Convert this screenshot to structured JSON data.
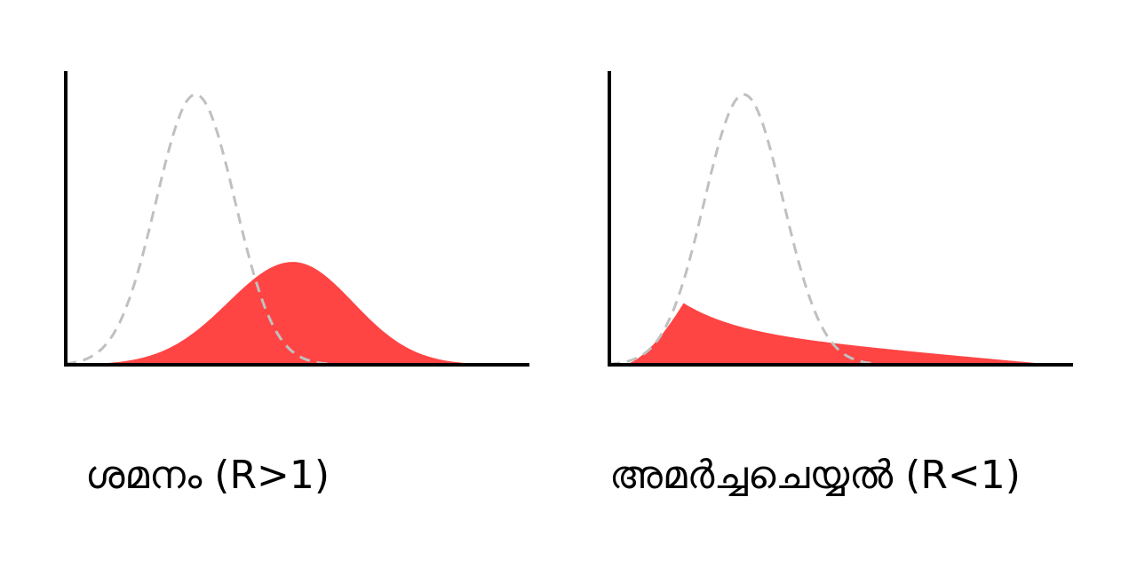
{
  "colors": {
    "filled_curve": "#ff4444",
    "reference_curve": "#c0c0c0",
    "axis": "#000000",
    "background": "#ffffff"
  },
  "panels": [
    {
      "caption": "ശമനം (R>1)",
      "reference_curve": {
        "peak_position": 0.28,
        "peak_height": 0.92,
        "width": 0.085
      },
      "filled_curve": {
        "peak_position": 0.49,
        "peak_height": 0.35
      }
    },
    {
      "caption": "അമർച്ചചെയ്യൽ (R<1)",
      "reference_curve": {
        "peak_position": 0.29,
        "peak_height": 0.92,
        "width": 0.085
      },
      "filled_curve": {
        "peak_position": 0.16,
        "peak_height": 0.21
      }
    }
  ]
}
